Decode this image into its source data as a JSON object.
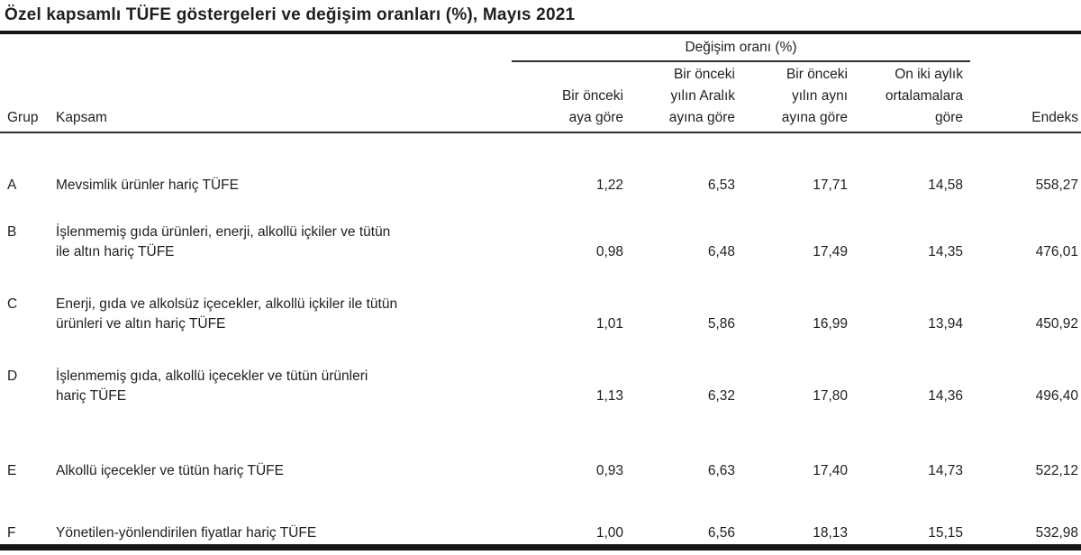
{
  "page": {
    "title": "Özel kapsamlı TÜFE göstergeleri ve değişim oranları (%), Mayıs 2021"
  },
  "table": {
    "span_header": "Değişim oranı (%)",
    "group_header": "Grup",
    "scope_header": "Kapsam",
    "index_header": "Endeks",
    "columns": [
      {
        "line1": "Bir önceki",
        "line2": "aya göre"
      },
      {
        "line1": "Bir önceki",
        "line2": "yılın Aralık",
        "line3": "ayına göre"
      },
      {
        "line1": "Bir önceki",
        "line2": "yılın aynı",
        "line3": "ayına göre"
      },
      {
        "line1": "On iki aylık",
        "line2": "ortalamalara",
        "line3": "göre"
      }
    ],
    "rows": [
      {
        "group": "A",
        "scope": "Mevsimlik ürünler hariç TÜFE",
        "monthly": "1,22",
        "since_december": "6,53",
        "annual": "17,71",
        "twelve_month_avg": "14,58",
        "index": "558,27"
      },
      {
        "group": "B",
        "scope": "İşlenmemiş gıda ürünleri, enerji, alkollü içkiler ve tütün\nile altın hariç TÜFE",
        "monthly": "0,98",
        "since_december": "6,48",
        "annual": "17,49",
        "twelve_month_avg": "14,35",
        "index": "476,01"
      },
      {
        "group": "C",
        "scope": "Enerji, gıda ve alkolsüz içecekler, alkollü içkiler ile tütün\nürünleri ve altın hariç TÜFE",
        "monthly": "1,01",
        "since_december": "5,86",
        "annual": "16,99",
        "twelve_month_avg": "13,94",
        "index": "450,92"
      },
      {
        "group": "D",
        "scope": "İşlenmemiş gıda, alkollü içecekler ve tütün ürünleri\nhariç TÜFE",
        "monthly": "1,13",
        "since_december": "6,32",
        "annual": "17,80",
        "twelve_month_avg": "14,36",
        "index": "496,40"
      },
      {
        "group": "E",
        "scope": "Alkollü içecekler ve tütün hariç TÜFE",
        "monthly": "0,93",
        "since_december": "6,63",
        "annual": "17,40",
        "twelve_month_avg": "14,73",
        "index": "522,12"
      },
      {
        "group": "F",
        "scope": "Yönetilen-yönlendirilen fiyatlar hariç TÜFE",
        "monthly": "1,00",
        "since_december": "6,56",
        "annual": "18,13",
        "twelve_month_avg": "15,15",
        "index": "532,98"
      }
    ]
  }
}
